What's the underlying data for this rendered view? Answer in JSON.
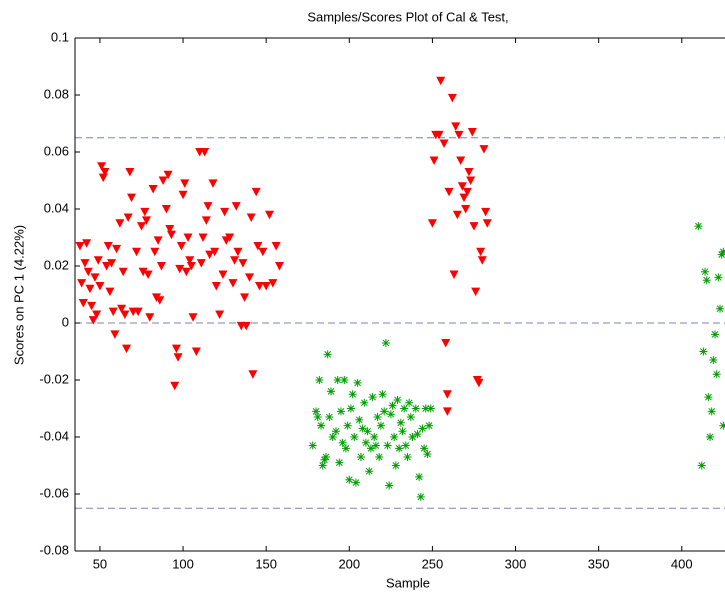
{
  "chart_data": {
    "type": "scatter",
    "title": "Samples/Scores Plot of Cal & Test,",
    "xlabel": "Sample",
    "ylabel": "Scores on PC 1 (4.22%)",
    "xlim": [
      35,
      426
    ],
    "ylim": [
      -0.08,
      0.1
    ],
    "xticks": [
      50,
      100,
      150,
      200,
      250,
      300,
      350,
      400
    ],
    "yticks": [
      -0.08,
      -0.06,
      -0.04,
      -0.02,
      0,
      0.02,
      0.04,
      0.06,
      0.08,
      0.1
    ],
    "hlines": [
      0.065,
      0,
      -0.065
    ],
    "hline_color": "#7f7fbf",
    "series": [
      {
        "color": "#ff0000",
        "marker": "triangle-down",
        "x": [
          38,
          39,
          40,
          41,
          42,
          43,
          44,
          45,
          46,
          47,
          48,
          49,
          50,
          51,
          52,
          53,
          54,
          55,
          56,
          57,
          58,
          59,
          60,
          62,
          63,
          64,
          65,
          66,
          67,
          68,
          69,
          70,
          72,
          73,
          75,
          76,
          77,
          78,
          79,
          80,
          82,
          83,
          84,
          85,
          86,
          87,
          88,
          90,
          91,
          92,
          93,
          95,
          96,
          97,
          98,
          99,
          100,
          101,
          102,
          103,
          104,
          105,
          106,
          108,
          110,
          111,
          112,
          113,
          114,
          115,
          116,
          118,
          119,
          120,
          122,
          124,
          125,
          126,
          128,
          130,
          131,
          132,
          133,
          135,
          136,
          137,
          138,
          140,
          141,
          142,
          144,
          145,
          146,
          148,
          150,
          152,
          154,
          156,
          158,
          250,
          251,
          252,
          254,
          255,
          257,
          258,
          259,
          259,
          260,
          262,
          263,
          264,
          265,
          266,
          267,
          268,
          269,
          270,
          271,
          272,
          273,
          274,
          275,
          276,
          277,
          278,
          279,
          280,
          281,
          282,
          283
        ],
        "values": [
          0.027,
          0.014,
          0.007,
          0.021,
          0.028,
          0.018,
          0.012,
          0.006,
          0.001,
          0.016,
          0.003,
          0.022,
          0.013,
          0.055,
          0.051,
          0.053,
          0.02,
          0.027,
          0.011,
          0.021,
          0.004,
          -0.004,
          0.026,
          0.035,
          0.005,
          0.018,
          0.003,
          -0.009,
          0.037,
          0.053,
          0.044,
          0.004,
          0.025,
          0.004,
          0.034,
          0.018,
          0.039,
          0.036,
          0.017,
          0.002,
          0.047,
          0.025,
          0.009,
          0.029,
          0.008,
          0.02,
          0.05,
          0.04,
          0.052,
          0.033,
          0.031,
          -0.022,
          -0.009,
          -0.012,
          0.019,
          0.027,
          0.045,
          0.049,
          0.018,
          0.03,
          0.022,
          0.02,
          0.002,
          -0.01,
          0.06,
          0.021,
          0.03,
          0.06,
          0.036,
          0.041,
          0.024,
          0.049,
          0.025,
          0.013,
          0.003,
          0.017,
          0.039,
          0.029,
          0.03,
          0.014,
          0.022,
          0.041,
          0.025,
          -0.001,
          0.021,
          0.009,
          -0.001,
          0.016,
          0.037,
          -0.018,
          0.046,
          0.027,
          0.013,
          0.025,
          0.013,
          0.038,
          0.014,
          0.027,
          0.02,
          0.035,
          0.057,
          0.066,
          0.066,
          0.085,
          0.063,
          -0.007,
          -0.025,
          -0.031,
          0.046,
          0.079,
          0.017,
          0.069,
          0.038,
          0.066,
          0.057,
          0.048,
          0.044,
          0.04,
          0.046,
          0.053,
          0.05,
          0.067,
          0.034,
          0.011,
          -0.02,
          -0.021,
          0.025,
          0.022,
          0.061,
          0.039,
          0.035
        ]
      },
      {
        "color": "#00a000",
        "marker": "asterisk",
        "x": [
          178,
          180,
          181,
          182,
          183,
          184,
          185,
          186,
          187,
          188,
          189,
          190,
          192,
          193,
          194,
          195,
          196,
          197,
          198,
          199,
          200,
          201,
          202,
          203,
          204,
          205,
          206,
          207,
          208,
          209,
          210,
          211,
          212,
          213,
          214,
          215,
          216,
          217,
          218,
          219,
          220,
          221,
          222,
          223,
          224,
          225,
          226,
          227,
          228,
          229,
          230,
          231,
          232,
          233,
          234,
          235,
          236,
          237,
          238,
          240,
          241,
          242,
          243,
          244,
          245,
          246,
          247,
          248,
          249,
          410,
          412,
          413,
          414,
          415,
          416,
          417,
          418,
          419,
          420,
          421,
          422,
          423,
          424,
          425,
          425
        ],
        "values": [
          -0.043,
          -0.031,
          -0.033,
          -0.02,
          -0.036,
          -0.05,
          -0.048,
          -0.047,
          -0.011,
          -0.033,
          -0.024,
          -0.04,
          -0.038,
          -0.02,
          -0.049,
          -0.031,
          -0.042,
          -0.02,
          -0.044,
          -0.036,
          -0.055,
          -0.03,
          -0.025,
          -0.04,
          -0.056,
          -0.021,
          -0.034,
          -0.047,
          -0.037,
          -0.028,
          -0.042,
          -0.038,
          -0.052,
          -0.044,
          -0.026,
          -0.04,
          -0.043,
          -0.033,
          -0.047,
          -0.036,
          -0.025,
          -0.031,
          -0.007,
          -0.043,
          -0.057,
          -0.032,
          -0.029,
          -0.04,
          -0.05,
          -0.027,
          -0.044,
          -0.035,
          -0.038,
          -0.03,
          -0.043,
          -0.047,
          -0.028,
          -0.033,
          -0.04,
          -0.03,
          -0.039,
          -0.054,
          -0.061,
          -0.037,
          -0.044,
          -0.03,
          -0.046,
          -0.036,
          -0.03,
          0.034,
          -0.05,
          -0.01,
          0.018,
          0.015,
          -0.026,
          -0.04,
          -0.031,
          -0.013,
          -0.004,
          -0.018,
          0.016,
          0.005,
          0.024,
          -0.036,
          0.025
        ]
      }
    ]
  }
}
